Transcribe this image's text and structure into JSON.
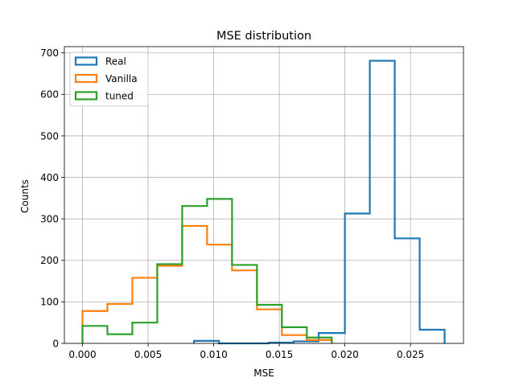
{
  "chart_data": {
    "type": "histogram",
    "title": "MSE distribution",
    "xlabel": "MSE",
    "ylabel": "Counts",
    "xlim": [
      -0.00138,
      0.02904
    ],
    "ylim": [
      0,
      715
    ],
    "xticks": [
      0.0,
      0.005,
      0.01,
      0.015,
      0.02,
      0.025
    ],
    "xtick_labels": [
      "0.000",
      "0.005",
      "0.010",
      "0.015",
      "0.020",
      "0.025"
    ],
    "yticks": [
      0,
      100,
      200,
      300,
      400,
      500,
      600,
      700
    ],
    "ytick_labels": [
      "0",
      "100",
      "200",
      "300",
      "400",
      "500",
      "600",
      "700"
    ],
    "grid": true,
    "legend_position": "top-left",
    "series": [
      {
        "name": "Real",
        "color": "#1f77b4",
        "edges": [
          0.0085,
          0.0104,
          0.0123,
          0.0142,
          0.0161,
          0.018,
          0.02,
          0.0219,
          0.0238,
          0.0257,
          0.0276
        ],
        "counts": [
          6,
          0,
          0,
          2,
          5,
          25,
          313,
          681,
          253,
          33
        ]
      },
      {
        "name": "Vanilla",
        "color": "#ff7f0e",
        "edges": [
          0.0,
          0.0019,
          0.0038,
          0.0057,
          0.0076,
          0.0095,
          0.0114,
          0.0133,
          0.0152,
          0.0171,
          0.019
        ],
        "counts": [
          78,
          95,
          158,
          187,
          283,
          238,
          176,
          82,
          20,
          8
        ]
      },
      {
        "name": "tuned",
        "color": "#2ca02c",
        "edges": [
          0.0,
          0.0019,
          0.0038,
          0.0057,
          0.0076,
          0.0095,
          0.0114,
          0.0133,
          0.0152,
          0.0171,
          0.019
        ],
        "counts": [
          42,
          22,
          50,
          191,
          331,
          348,
          189,
          93,
          39,
          14
        ]
      }
    ]
  }
}
